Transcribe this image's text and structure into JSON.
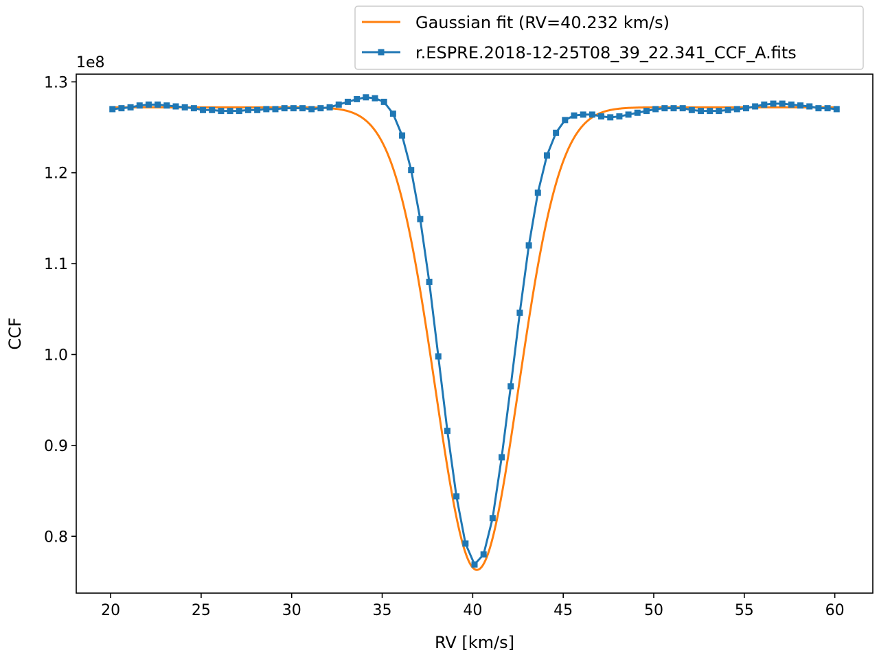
{
  "chart_data": {
    "type": "line",
    "xlabel": "RV [km/s]",
    "ylabel": "CCF",
    "offset_label": "1e8",
    "xlim": [
      18.1,
      62.1
    ],
    "ylim": [
      0.7375,
      1.3085
    ],
    "x_ticks": [
      20,
      25,
      30,
      35,
      40,
      45,
      50,
      55,
      60
    ],
    "x_tick_labels": [
      "20",
      "25",
      "30",
      "35",
      "40",
      "45",
      "50",
      "55",
      "60"
    ],
    "y_ticks": [
      0.8,
      0.9,
      1.0,
      1.1,
      1.2,
      1.3
    ],
    "y_tick_labels": [
      "0.8",
      "0.9",
      "1.0",
      "1.1",
      "1.2",
      "1.3"
    ],
    "grid": false,
    "legend_position": "top-right, above plot",
    "colors": {
      "data": "#1f77b4",
      "fit": "#ff7f0e"
    },
    "series": [
      {
        "name": "Gaussian fit (RV=40.232 km/s)",
        "kind": "fit",
        "color": "#ff7f0e",
        "model": {
          "baseline": 1.272,
          "depth": 0.509,
          "center": 40.232,
          "sigma": 2.3
        },
        "x_range": [
          20.1,
          60.1
        ]
      },
      {
        "name": "r.ESPRE.2018-12-25T08_39_22.341_CCF_A.fits",
        "kind": "data",
        "color": "#1f77b4",
        "marker": "square",
        "x": [
          20.1,
          20.6,
          21.1,
          21.6,
          22.1,
          22.6,
          23.1,
          23.6,
          24.1,
          24.6,
          25.1,
          25.6,
          26.1,
          26.6,
          27.1,
          27.6,
          28.1,
          28.6,
          29.1,
          29.6,
          30.1,
          30.6,
          31.1,
          31.6,
          32.1,
          32.6,
          33.1,
          33.6,
          34.1,
          34.6,
          35.1,
          35.6,
          36.1,
          36.6,
          37.1,
          37.6,
          38.1,
          38.6,
          39.1,
          39.6,
          40.1,
          40.6,
          41.1,
          41.6,
          42.1,
          42.6,
          43.1,
          43.6,
          44.1,
          44.6,
          45.1,
          45.6,
          46.1,
          46.6,
          47.1,
          47.6,
          48.1,
          48.6,
          49.1,
          49.6,
          50.1,
          50.6,
          51.1,
          51.6,
          52.1,
          52.6,
          53.1,
          53.6,
          54.1,
          54.6,
          55.1,
          55.6,
          56.1,
          56.6,
          57.1,
          57.6,
          58.1,
          58.6,
          59.1,
          59.6,
          60.1
        ],
        "y": [
          1.27,
          1.271,
          1.272,
          1.274,
          1.275,
          1.275,
          1.274,
          1.273,
          1.272,
          1.271,
          1.269,
          1.269,
          1.268,
          1.268,
          1.268,
          1.269,
          1.269,
          1.27,
          1.27,
          1.271,
          1.271,
          1.271,
          1.27,
          1.271,
          1.272,
          1.275,
          1.278,
          1.281,
          1.283,
          1.282,
          1.278,
          1.265,
          1.241,
          1.203,
          1.149,
          1.08,
          0.998,
          0.916,
          0.844,
          0.792,
          0.769,
          0.78,
          0.82,
          0.887,
          0.965,
          1.046,
          1.12,
          1.178,
          1.219,
          1.244,
          1.258,
          1.263,
          1.264,
          1.264,
          1.262,
          1.261,
          1.262,
          1.264,
          1.266,
          1.268,
          1.27,
          1.271,
          1.271,
          1.271,
          1.269,
          1.268,
          1.268,
          1.268,
          1.269,
          1.27,
          1.271,
          1.273,
          1.275,
          1.276,
          1.276,
          1.275,
          1.274,
          1.273,
          1.271,
          1.271,
          1.27
        ]
      }
    ]
  }
}
